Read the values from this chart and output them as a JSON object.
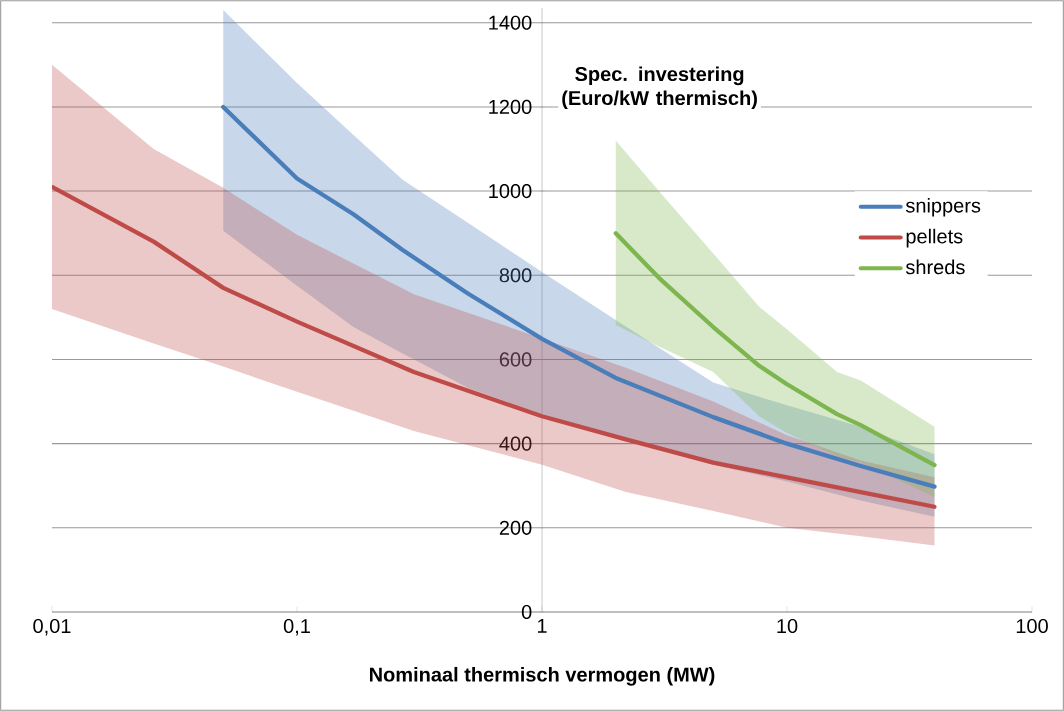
{
  "chart_data": {
    "type": "line",
    "xlabel": "Nominaal thermisch vermogen (MW)",
    "ylabel": "Spec. investering (Euro/kW thermisch)",
    "log": "x",
    "grid": "y",
    "legend": "right",
    "xlim": [
      0.01,
      100
    ],
    "ylim": [
      0,
      1435
    ],
    "xticks": [
      {
        "value": 0.01,
        "label": "0,01"
      },
      {
        "value": 0.1,
        "label": "0,1"
      },
      1,
      10,
      100
    ],
    "yticks": [
      0,
      200,
      400,
      600,
      800,
      1000,
      1200,
      1400
    ],
    "series": [
      {
        "name": "snippers",
        "color": "#4a7ebb",
        "x": [
          0.05,
          0.1,
          0.17,
          0.27,
          0.5,
          1,
          2,
          5,
          10,
          20,
          40
        ],
        "values": [
          1200,
          1030,
          945,
          860,
          756,
          649,
          556,
          463,
          400,
          347,
          298
        ],
        "upper": [
          1430,
          1257,
          1133,
          1027,
          924,
          808,
          694,
          545,
          491,
          440,
          375
        ],
        "lower": [
          906,
          775,
          677,
          614,
          532,
          470,
          415,
          350,
          310,
          265,
          226
        ]
      },
      {
        "name": "pellets",
        "color": "#be4b48",
        "x": [
          0.01,
          0.026,
          0.05,
          0.1,
          0.3,
          1,
          2.2,
          5,
          10,
          20,
          40
        ],
        "values": [
          1010,
          880,
          770,
          690,
          570,
          465,
          410,
          355,
          320,
          285,
          250
        ],
        "upper": [
          1300,
          1100,
          1008,
          896,
          755,
          650,
          580,
          500,
          420,
          360,
          320
        ],
        "lower": [
          720,
          638,
          583,
          523,
          430,
          350,
          285,
          240,
          200,
          180,
          158
        ]
      },
      {
        "name": "shreds",
        "color": "#7eb54e",
        "x": [
          2,
          3,
          5,
          7.7,
          10,
          16,
          20,
          40
        ],
        "values": [
          900,
          794,
          677,
          585,
          541,
          470,
          444,
          349
        ],
        "upper": [
          1120,
          1000,
          852,
          725,
          672,
          570,
          550,
          440
        ],
        "lower": [
          682,
          631,
          570,
          465,
          425,
          370,
          355,
          273
        ]
      }
    ]
  }
}
